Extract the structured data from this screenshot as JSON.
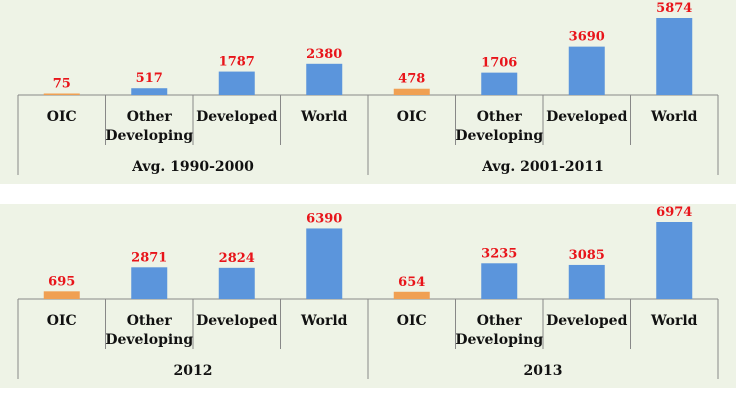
{
  "colors": {
    "oic": "#f0a053",
    "other": "#5b95dc",
    "label": "#e8141a",
    "background": "#eef3e6"
  },
  "chart_data": [
    {
      "type": "bar",
      "groups": [
        {
          "label": "Avg. 1990-2000",
          "categories": [
            [
              "OIC"
            ],
            [
              "Other",
              "Developing"
            ],
            [
              "Developed"
            ],
            [
              "World"
            ]
          ],
          "values": [
            75,
            517,
            1787,
            2380
          ]
        },
        {
          "label": "Avg. 2001-2011",
          "categories": [
            [
              "OIC"
            ],
            [
              "Other",
              "Developing"
            ],
            [
              "Developed"
            ],
            [
              "World"
            ]
          ],
          "values": [
            478,
            1706,
            3690,
            5874
          ]
        }
      ],
      "ylim": [
        0,
        5874
      ]
    },
    {
      "type": "bar",
      "groups": [
        {
          "label": "2012",
          "categories": [
            [
              "OIC"
            ],
            [
              "Other",
              "Developing"
            ],
            [
              "Developed"
            ],
            [
              "World"
            ]
          ],
          "values": [
            695,
            2871,
            2824,
            6390
          ]
        },
        {
          "label": "2013",
          "categories": [
            [
              "OIC"
            ],
            [
              "Other",
              "Developing"
            ],
            [
              "Developed"
            ],
            [
              "World"
            ]
          ],
          "values": [
            654,
            3235,
            3085,
            6974
          ]
        }
      ],
      "ylim": [
        0,
        6974
      ]
    }
  ]
}
